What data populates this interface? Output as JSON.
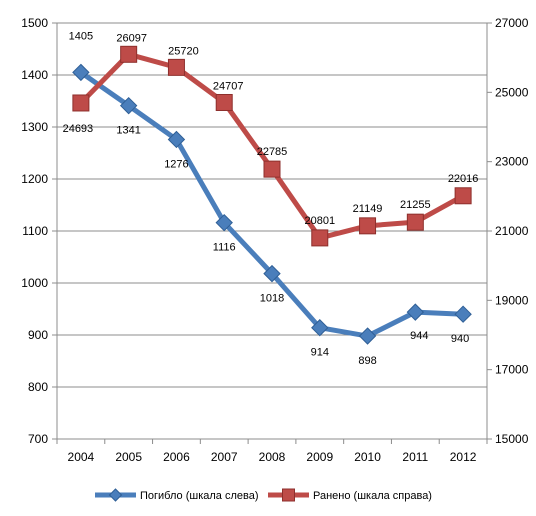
{
  "chart_data": {
    "type": "line",
    "categories": [
      "2004",
      "2005",
      "2006",
      "2007",
      "2008",
      "2009",
      "2010",
      "2011",
      "2012"
    ],
    "series": [
      {
        "name": "Погибло  (шкала слева)",
        "axis": "left",
        "color": "#4a7ebb",
        "marker": "diamond",
        "values": [
          1405,
          1341,
          1276,
          1116,
          1018,
          914,
          898,
          944,
          940
        ],
        "labels": [
          "1405",
          "1341",
          "1276",
          "1116",
          "1018",
          "914",
          "898",
          "944",
          "940"
        ]
      },
      {
        "name": "Ранено (шкала справа)",
        "axis": "right",
        "color": "#be4b48",
        "marker": "square",
        "values": [
          24693,
          26097,
          25720,
          24707,
          22785,
          20801,
          21149,
          21255,
          22016
        ],
        "labels": [
          "24693",
          "26097",
          "25720",
          "24707",
          "22785",
          "20801",
          "21149",
          "21255",
          "22016"
        ]
      }
    ],
    "y_left": {
      "range": [
        700,
        1500
      ],
      "ticks": [
        700,
        800,
        900,
        1000,
        1100,
        1200,
        1300,
        1400,
        1500
      ],
      "tick_labels": [
        "700",
        "800",
        "900",
        "1000",
        "1100",
        "1200",
        "1300",
        "1400",
        "1500"
      ]
    },
    "y_right": {
      "range": [
        15000,
        27000
      ],
      "ticks": [
        15000,
        17000,
        19000,
        21000,
        23000,
        25000,
        27000
      ],
      "tick_labels": [
        "15000",
        "17000",
        "19000",
        "21000",
        "23000",
        "25000",
        "27000"
      ]
    },
    "grid": true,
    "legend_position": "bottom",
    "title": "",
    "xlabel": "",
    "ylabel": ""
  }
}
